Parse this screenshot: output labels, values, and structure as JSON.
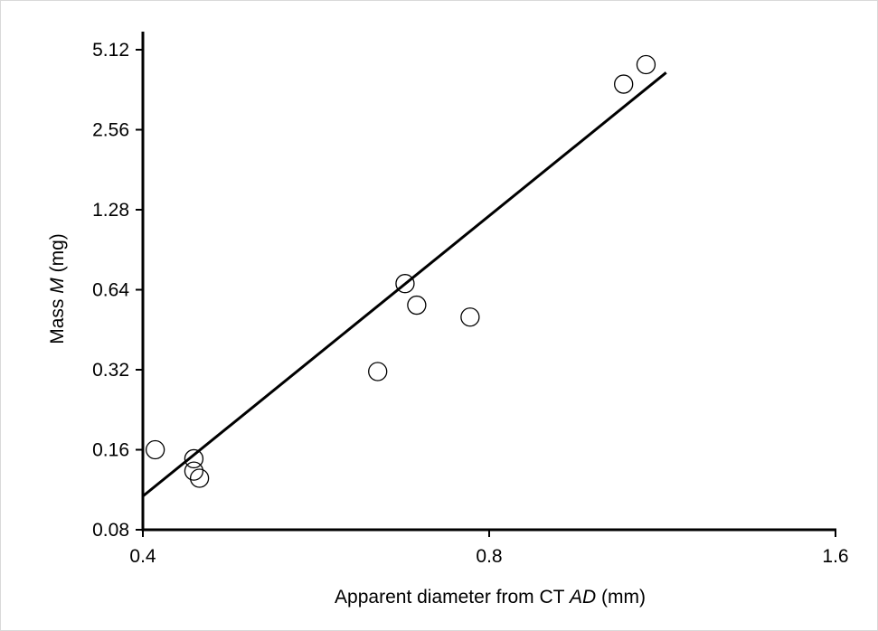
{
  "chart_data": {
    "type": "scatter",
    "xlabel": {
      "prefix": "Apparent diameter from CT ",
      "italic": "AD",
      "suffix": " (mm)"
    },
    "ylabel": {
      "prefix": "Mass ",
      "italic": "M",
      "suffix": " (mg)"
    },
    "x_scale": "log2",
    "y_scale": "log2",
    "xlim": [
      0.4,
      1.6
    ],
    "ylim": [
      0.08,
      5.12
    ],
    "x_ticks": [
      0.4,
      0.8,
      1.6
    ],
    "x_tick_labels": [
      "0.4",
      "0.8",
      "1.6"
    ],
    "y_ticks": [
      0.08,
      0.16,
      0.32,
      0.64,
      1.28,
      2.56,
      5.12
    ],
    "y_tick_labels": [
      "0.08",
      "0.16",
      "0.32",
      "0.64",
      "1.28",
      "2.56",
      "5.12"
    ],
    "grid": false,
    "legend": "none",
    "marker": "open-circle",
    "series": [
      {
        "points": [
          {
            "x": 0.41,
            "y": 0.16
          },
          {
            "x": 0.443,
            "y": 0.148
          },
          {
            "x": 0.443,
            "y": 0.133
          },
          {
            "x": 0.448,
            "y": 0.125
          },
          {
            "x": 0.64,
            "y": 0.315
          },
          {
            "x": 0.676,
            "y": 0.675
          },
          {
            "x": 0.692,
            "y": 0.56
          },
          {
            "x": 0.77,
            "y": 0.505
          },
          {
            "x": 1.047,
            "y": 3.8
          },
          {
            "x": 1.095,
            "y": 4.5
          }
        ]
      }
    ],
    "fit_line": {
      "type": "power-law",
      "x": [
        0.4,
        1.14
      ],
      "y": [
        0.107,
        4.2
      ]
    },
    "colors": {
      "axis": "#000000",
      "marker_stroke": "#000000",
      "marker_fill": "#ffffff",
      "line": "#000000"
    }
  }
}
